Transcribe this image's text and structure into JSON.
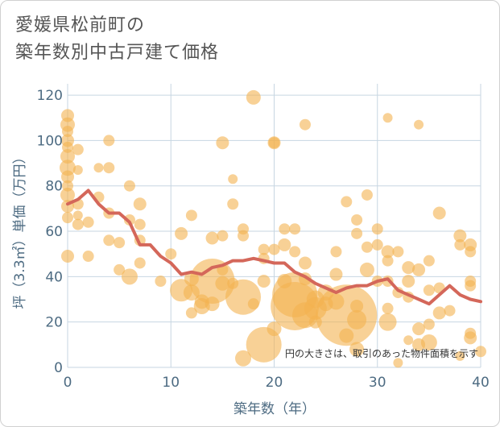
{
  "title": {
    "line1": "愛媛県松前町の",
    "line2": "築年数別中古戸建て価格"
  },
  "chart_data": {
    "type": "scatter",
    "xlabel": "築年数（年）",
    "ylabel": "坪（3.3㎡）単価（万円）",
    "xlim": [
      0,
      40
    ],
    "ylim": [
      0,
      125
    ],
    "xticks": [
      0,
      10,
      20,
      30,
      40
    ],
    "yticks": [
      0,
      20,
      40,
      60,
      80,
      100,
      120
    ],
    "grid": true,
    "annotation": "円の大きさは、取引のあった物件面積を示す",
    "colors": {
      "bubble": "#f4b350",
      "line": "#d4675a",
      "grid": "#c7d6e2"
    },
    "trend_line": {
      "x": [
        0,
        1,
        2,
        3,
        4,
        5,
        6,
        7,
        8,
        9,
        10,
        11,
        12,
        13,
        14,
        15,
        16,
        17,
        18,
        19,
        20,
        21,
        22,
        23,
        24,
        25,
        26,
        27,
        28,
        29,
        30,
        31,
        32,
        33,
        34,
        35,
        36,
        37,
        38,
        39,
        40
      ],
      "y": [
        72,
        74,
        78,
        72,
        68,
        68,
        64,
        54,
        54,
        49,
        46,
        41,
        42,
        41,
        44,
        45,
        47,
        47,
        48,
        47,
        46,
        46,
        42,
        40,
        37,
        35,
        33,
        35,
        36,
        36,
        38,
        39,
        34,
        32,
        30,
        28,
        32,
        36,
        32,
        30,
        29
      ]
    },
    "points": [
      {
        "x": 0,
        "y": 111,
        "s": 8
      },
      {
        "x": 0,
        "y": 107,
        "s": 9
      },
      {
        "x": 0,
        "y": 104,
        "s": 7
      },
      {
        "x": 0,
        "y": 100,
        "s": 8
      },
      {
        "x": 0,
        "y": 97,
        "s": 7
      },
      {
        "x": 0,
        "y": 93,
        "s": 9
      },
      {
        "x": 0,
        "y": 88,
        "s": 10
      },
      {
        "x": 0,
        "y": 84,
        "s": 8
      },
      {
        "x": 0,
        "y": 80,
        "s": 7
      },
      {
        "x": 0,
        "y": 76,
        "s": 9
      },
      {
        "x": 0,
        "y": 71,
        "s": 8
      },
      {
        "x": 0,
        "y": 66,
        "s": 7
      },
      {
        "x": 0,
        "y": 49,
        "s": 8
      },
      {
        "x": 1,
        "y": 96,
        "s": 7
      },
      {
        "x": 1,
        "y": 87,
        "s": 6
      },
      {
        "x": 1,
        "y": 72,
        "s": 7
      },
      {
        "x": 1,
        "y": 67,
        "s": 6
      },
      {
        "x": 1,
        "y": 63,
        "s": 7
      },
      {
        "x": 2,
        "y": 64,
        "s": 7
      },
      {
        "x": 2,
        "y": 49,
        "s": 7
      },
      {
        "x": 3,
        "y": 88,
        "s": 6
      },
      {
        "x": 3,
        "y": 75,
        "s": 7
      },
      {
        "x": 4,
        "y": 100,
        "s": 7
      },
      {
        "x": 4,
        "y": 88,
        "s": 7
      },
      {
        "x": 4,
        "y": 68,
        "s": 7
      },
      {
        "x": 4,
        "y": 56,
        "s": 7
      },
      {
        "x": 5,
        "y": 55,
        "s": 7
      },
      {
        "x": 5,
        "y": 43,
        "s": 7
      },
      {
        "x": 6,
        "y": 80,
        "s": 7
      },
      {
        "x": 6,
        "y": 65,
        "s": 7
      },
      {
        "x": 6,
        "y": 40,
        "s": 10
      },
      {
        "x": 7,
        "y": 72,
        "s": 8
      },
      {
        "x": 7,
        "y": 63,
        "s": 7
      },
      {
        "x": 7,
        "y": 56,
        "s": 7
      },
      {
        "x": 7,
        "y": 46,
        "s": 7
      },
      {
        "x": 9,
        "y": 38,
        "s": 7
      },
      {
        "x": 10,
        "y": 50,
        "s": 7
      },
      {
        "x": 11,
        "y": 59,
        "s": 8
      },
      {
        "x": 11,
        "y": 34,
        "s": 14
      },
      {
        "x": 12,
        "y": 67,
        "s": 7
      },
      {
        "x": 12,
        "y": 39,
        "s": 9
      },
      {
        "x": 12,
        "y": 33,
        "s": 10
      },
      {
        "x": 12,
        "y": 24,
        "s": 7
      },
      {
        "x": 13,
        "y": 29,
        "s": 9
      },
      {
        "x": 13,
        "y": 27,
        "s": 10
      },
      {
        "x": 14,
        "y": 57,
        "s": 8
      },
      {
        "x": 14,
        "y": 38,
        "s": 28
      },
      {
        "x": 14,
        "y": 28,
        "s": 9
      },
      {
        "x": 15,
        "y": 99,
        "s": 8
      },
      {
        "x": 15,
        "y": 58,
        "s": 7
      },
      {
        "x": 15,
        "y": 43,
        "s": 7
      },
      {
        "x": 15,
        "y": 37,
        "s": 9
      },
      {
        "x": 16,
        "y": 83,
        "s": 6
      },
      {
        "x": 16,
        "y": 72,
        "s": 7
      },
      {
        "x": 16,
        "y": 37,
        "s": 7
      },
      {
        "x": 17,
        "y": 61,
        "s": 7
      },
      {
        "x": 17,
        "y": 58,
        "s": 7
      },
      {
        "x": 17,
        "y": 31,
        "s": 22
      },
      {
        "x": 17,
        "y": 4,
        "s": 10
      },
      {
        "x": 18,
        "y": 119,
        "s": 9
      },
      {
        "x": 18,
        "y": 28,
        "s": 7
      },
      {
        "x": 19,
        "y": 52,
        "s": 7
      },
      {
        "x": 19,
        "y": 48,
        "s": 7
      },
      {
        "x": 19,
        "y": 38,
        "s": 8
      },
      {
        "x": 19,
        "y": 10,
        "s": 22
      },
      {
        "x": 20,
        "y": 99,
        "s": 8
      },
      {
        "x": 20,
        "y": 99,
        "s": 7
      },
      {
        "x": 20,
        "y": 52,
        "s": 7
      },
      {
        "x": 20,
        "y": 17,
        "s": 9
      },
      {
        "x": 21,
        "y": 61,
        "s": 7
      },
      {
        "x": 21,
        "y": 54,
        "s": 8
      },
      {
        "x": 21,
        "y": 38,
        "s": 9
      },
      {
        "x": 22,
        "y": 61,
        "s": 7
      },
      {
        "x": 22,
        "y": 51,
        "s": 7
      },
      {
        "x": 22,
        "y": 32,
        "s": 28
      },
      {
        "x": 22,
        "y": 27,
        "s": 30
      },
      {
        "x": 23,
        "y": 107,
        "s": 7
      },
      {
        "x": 23,
        "y": 46,
        "s": 8
      },
      {
        "x": 23,
        "y": 39,
        "s": 8
      },
      {
        "x": 23,
        "y": 23,
        "s": 16
      },
      {
        "x": 24,
        "y": 30,
        "s": 11
      },
      {
        "x": 24,
        "y": 26,
        "s": 14
      },
      {
        "x": 24,
        "y": 20,
        "s": 8
      },
      {
        "x": 25,
        "y": 33,
        "s": 10
      },
      {
        "x": 25,
        "y": 28,
        "s": 9
      },
      {
        "x": 26,
        "y": 51,
        "s": 7
      },
      {
        "x": 26,
        "y": 41,
        "s": 8
      },
      {
        "x": 26,
        "y": 29,
        "s": 10
      },
      {
        "x": 27,
        "y": 73,
        "s": 7
      },
      {
        "x": 27,
        "y": 23,
        "s": 38
      },
      {
        "x": 27,
        "y": 14,
        "s": 9
      },
      {
        "x": 28,
        "y": 65,
        "s": 7
      },
      {
        "x": 28,
        "y": 59,
        "s": 7
      },
      {
        "x": 28,
        "y": 27,
        "s": 8
      },
      {
        "x": 28,
        "y": 21,
        "s": 12
      },
      {
        "x": 28,
        "y": 8,
        "s": 9
      },
      {
        "x": 29,
        "y": 76,
        "s": 7
      },
      {
        "x": 29,
        "y": 53,
        "s": 7
      },
      {
        "x": 29,
        "y": 43,
        "s": 9
      },
      {
        "x": 30,
        "y": 61,
        "s": 7
      },
      {
        "x": 30,
        "y": 54,
        "s": 7
      },
      {
        "x": 30,
        "y": 38,
        "s": 7
      },
      {
        "x": 31,
        "y": 110,
        "s": 6
      },
      {
        "x": 31,
        "y": 51,
        "s": 8
      },
      {
        "x": 31,
        "y": 47,
        "s": 7
      },
      {
        "x": 31,
        "y": 38,
        "s": 7
      },
      {
        "x": 31,
        "y": 26,
        "s": 7
      },
      {
        "x": 31,
        "y": 20,
        "s": 11
      },
      {
        "x": 32,
        "y": 51,
        "s": 7
      },
      {
        "x": 32,
        "y": 33,
        "s": 7
      },
      {
        "x": 32,
        "y": 2,
        "s": 6
      },
      {
        "x": 33,
        "y": 44,
        "s": 8
      },
      {
        "x": 33,
        "y": 38,
        "s": 8
      },
      {
        "x": 33,
        "y": 31,
        "s": 7
      },
      {
        "x": 33,
        "y": 12,
        "s": 6
      },
      {
        "x": 34,
        "y": 107,
        "s": 6
      },
      {
        "x": 34,
        "y": 43,
        "s": 8
      },
      {
        "x": 34,
        "y": 17,
        "s": 8
      },
      {
        "x": 34,
        "y": 10,
        "s": 8
      },
      {
        "x": 35,
        "y": 47,
        "s": 7
      },
      {
        "x": 35,
        "y": 34,
        "s": 7
      },
      {
        "x": 35,
        "y": 19,
        "s": 7
      },
      {
        "x": 35,
        "y": 11,
        "s": 10
      },
      {
        "x": 36,
        "y": 68,
        "s": 8
      },
      {
        "x": 36,
        "y": 35,
        "s": 7
      },
      {
        "x": 36,
        "y": 24,
        "s": 8
      },
      {
        "x": 37,
        "y": 25,
        "s": 7
      },
      {
        "x": 38,
        "y": 58,
        "s": 8
      },
      {
        "x": 38,
        "y": 54,
        "s": 7
      },
      {
        "x": 38,
        "y": 5,
        "s": 6
      },
      {
        "x": 39,
        "y": 54,
        "s": 8
      },
      {
        "x": 39,
        "y": 51,
        "s": 7
      },
      {
        "x": 39,
        "y": 38,
        "s": 7
      },
      {
        "x": 39,
        "y": 36,
        "s": 7
      },
      {
        "x": 39,
        "y": 15,
        "s": 7
      },
      {
        "x": 39,
        "y": 13,
        "s": 8
      },
      {
        "x": 40,
        "y": 7,
        "s": 7
      }
    ]
  }
}
